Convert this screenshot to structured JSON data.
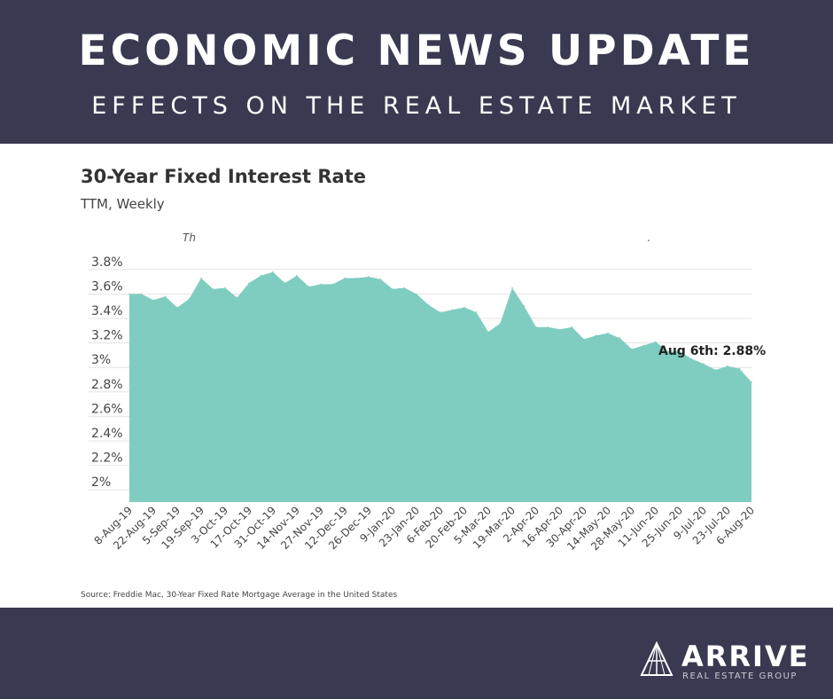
{
  "header": {
    "headline": "ECONOMIC NEWS UPDATE",
    "subheadline": "EFFECTS ON THE REAL ESTATE MARKET"
  },
  "chart_data": {
    "type": "area",
    "title": "30-Year Fixed Interest Rate",
    "subtitle": "TTM, Weekly",
    "faded_text_left": "Th",
    "faded_text_right": ".",
    "xlabel": "",
    "ylabel": "",
    "ylim": [
      1.9,
      3.9
    ],
    "grid": true,
    "color": "#7ecdc0",
    "y_ticks": [
      {
        "value": 3.8,
        "label": "3.8%"
      },
      {
        "value": 3.6,
        "label": "3.6%"
      },
      {
        "value": 3.4,
        "label": "3.4%"
      },
      {
        "value": 3.2,
        "label": "3.2%"
      },
      {
        "value": 3.0,
        "label": "3%"
      },
      {
        "value": 2.8,
        "label": "2.8%"
      },
      {
        "value": 2.6,
        "label": "2.6%"
      },
      {
        "value": 2.4,
        "label": "2.4%"
      },
      {
        "value": 2.2,
        "label": "2.2%"
      },
      {
        "value": 2.0,
        "label": "2%"
      }
    ],
    "x_tick_labels": [
      "8-Aug-19",
      "22-Aug-19",
      "5-Sep-19",
      "19-Sep-19",
      "3-Oct-19",
      "17-Oct-19",
      "31-Oct-19",
      "14-Nov-19",
      "27-Nov-19",
      "12-Dec-19",
      "26-Dec-19",
      "9-Jan-20",
      "23-Jan-20",
      "6-Feb-20",
      "20-Feb-20",
      "5-Mar-20",
      "19-Mar-20",
      "2-Apr-20",
      "16-Apr-20",
      "30-Apr-20",
      "14-May-20",
      "28-May-20",
      "11-Jun-20",
      "25-Jun-20",
      "9-Jul-20",
      "23-Jul-20",
      "6-Aug-20"
    ],
    "x": [
      "8-Aug-19",
      "15-Aug-19",
      "22-Aug-19",
      "29-Aug-19",
      "5-Sep-19",
      "12-Sep-19",
      "19-Sep-19",
      "26-Sep-19",
      "3-Oct-19",
      "10-Oct-19",
      "17-Oct-19",
      "24-Oct-19",
      "31-Oct-19",
      "7-Nov-19",
      "14-Nov-19",
      "21-Nov-19",
      "27-Nov-19",
      "5-Dec-19",
      "12-Dec-19",
      "19-Dec-19",
      "26-Dec-19",
      "2-Jan-20",
      "9-Jan-20",
      "16-Jan-20",
      "23-Jan-20",
      "30-Jan-20",
      "6-Feb-20",
      "13-Feb-20",
      "20-Feb-20",
      "27-Feb-20",
      "5-Mar-20",
      "12-Mar-20",
      "19-Mar-20",
      "26-Mar-20",
      "2-Apr-20",
      "9-Apr-20",
      "16-Apr-20",
      "23-Apr-20",
      "30-Apr-20",
      "7-May-20",
      "14-May-20",
      "21-May-20",
      "28-May-20",
      "4-Jun-20",
      "11-Jun-20",
      "18-Jun-20",
      "25-Jun-20",
      "2-Jul-20",
      "9-Jul-20",
      "16-Jul-20",
      "23-Jul-20",
      "30-Jul-20",
      "6-Aug-20"
    ],
    "values": [
      3.6,
      3.6,
      3.55,
      3.58,
      3.49,
      3.56,
      3.73,
      3.64,
      3.65,
      3.57,
      3.69,
      3.75,
      3.78,
      3.69,
      3.75,
      3.66,
      3.68,
      3.68,
      3.73,
      3.73,
      3.74,
      3.72,
      3.64,
      3.65,
      3.6,
      3.51,
      3.45,
      3.47,
      3.49,
      3.45,
      3.29,
      3.36,
      3.65,
      3.5,
      3.33,
      3.33,
      3.31,
      3.33,
      3.23,
      3.26,
      3.28,
      3.24,
      3.15,
      3.18,
      3.21,
      3.13,
      3.13,
      3.07,
      3.03,
      2.98,
      3.01,
      2.99,
      2.88
    ],
    "annotation": "Aug 6th: 2.88%",
    "source": "Source:  Freddie Mac, 30-Year Fixed Rate Mortgage Average in the United States"
  },
  "brand": {
    "name": "ARRIVE",
    "tagline": "REAL ESTATE GROUP"
  }
}
